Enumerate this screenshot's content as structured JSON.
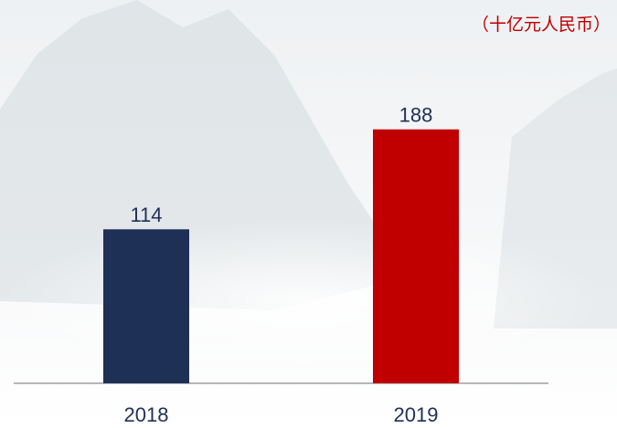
{
  "chart_data": {
    "type": "bar",
    "subtitle": "（十亿元人民币）",
    "categories": [
      "2018",
      "2019"
    ],
    "values": [
      114,
      188
    ],
    "colors": [
      "#1f3057",
      "#c00000"
    ]
  }
}
